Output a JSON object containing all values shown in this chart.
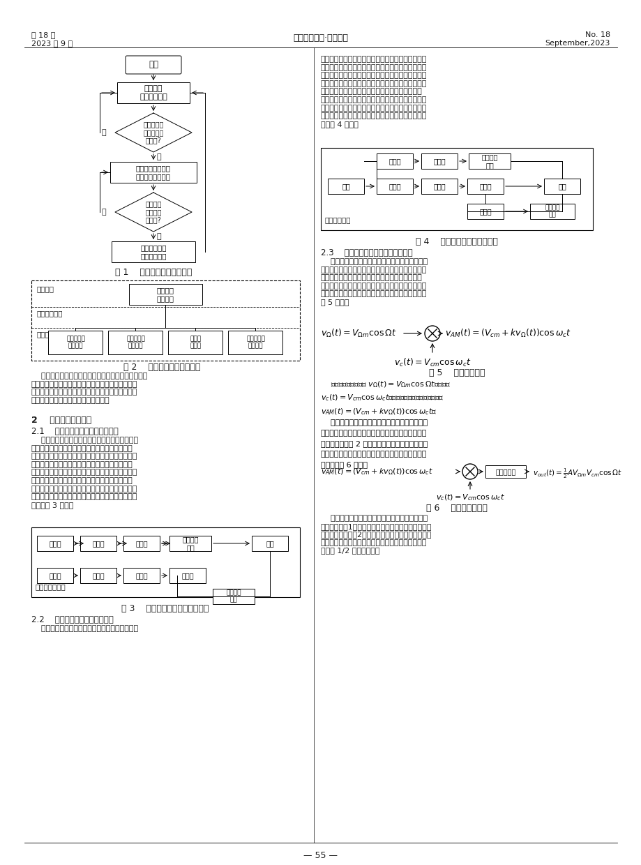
{
  "header_left_line1": "第 18 期",
  "header_left_line2": "2023 年 9 月",
  "header_center": "无线互联科技·软件开发",
  "header_right_line1": "No. 18",
  "header_right_line2": "September,2023",
  "footer_center": "— 55 —",
  "page_bg": "#ffffff",
  "text_color": "#1a1a1a",
  "box_color": "#000000"
}
